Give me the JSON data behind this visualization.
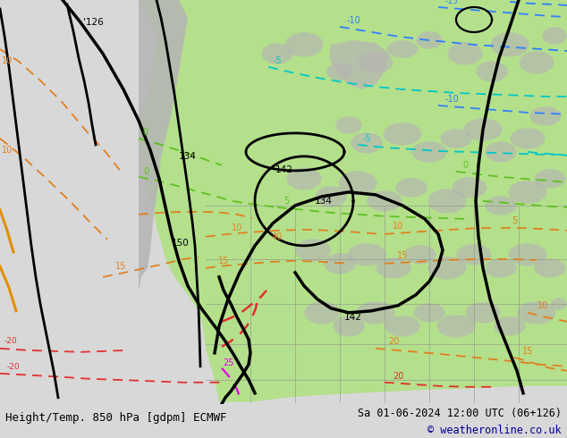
{
  "title_left": "Height/Temp. 850 hPa [gdpm] ECMWF",
  "title_right": "Sa 01-06-2024 12:00 UTC (06+126)",
  "copyright": "© weatheronline.co.uk",
  "bg_map_color": "#d8d8d8",
  "green_land_color": "#b4e08c",
  "gray_land_color": "#b4b4b4",
  "bottom_bg": "#cccccc",
  "figure_width": 6.34,
  "figure_height": 4.9,
  "dpi": 100,
  "title_fontsize": 9.0,
  "copyright_color": "#00008b",
  "copyright_fontsize": 8.5,
  "black_lw": 2.0,
  "temp_lw": 1.3,
  "colors": {
    "orange": "#e08020",
    "lime": "#60c020",
    "cyan": "#00c8c8",
    "blue": "#3080ff",
    "red": "#e03030",
    "magenta": "#e000e0",
    "yellow_orange": "#e09000",
    "black": "#000000"
  }
}
